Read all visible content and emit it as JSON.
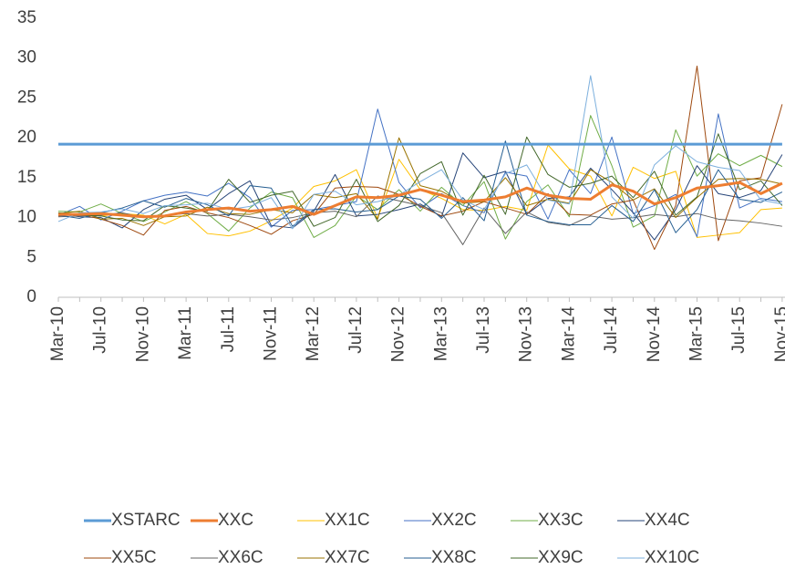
{
  "chart_data": {
    "type": "line",
    "categories": [
      "Mar-10",
      null,
      "Jul-10",
      null,
      "Nov-10",
      null,
      "Mar-11",
      null,
      "Jul-11",
      null,
      "Nov-11",
      null,
      "Mar-12",
      null,
      "Jul-12",
      null,
      "Nov-12",
      null,
      "Mar-13",
      null,
      "Jul-13",
      null,
      "Nov-13",
      null,
      "Mar-14",
      null,
      "Jul-14",
      null,
      "Nov-14",
      null,
      "Mar-15",
      null,
      "Jul-15",
      null,
      "Nov-15"
    ],
    "ylim": [
      0,
      35
    ],
    "yticks": [
      0,
      5,
      10,
      15,
      20,
      25,
      30,
      35
    ],
    "grid": false,
    "legend": "bottom",
    "series": [
      {
        "name": "XSTARC",
        "color": "#5b9bd5",
        "values": [
          19.2,
          19.2,
          19.2,
          19.2,
          19.2,
          19.2,
          19.2,
          19.2,
          19.2,
          19.2,
          19.2,
          19.2,
          19.2,
          19.2,
          19.2,
          19.2,
          19.2,
          19.2,
          19.2,
          19.2,
          19.2,
          19.2,
          19.2,
          19.2,
          19.2,
          19.2,
          19.2,
          19.2,
          19.2,
          19.2,
          19.2,
          19.2,
          19.2,
          19.2,
          19.2
        ]
      },
      {
        "name": "XXC",
        "color": "#ed7d31",
        "values": [
          10.4,
          10.4,
          10.5,
          10.3,
          10.1,
          10.2,
          10.7,
          11.0,
          11.2,
          10.8,
          11.0,
          11.4,
          10.4,
          11.5,
          12.6,
          12.5,
          12.8,
          13.5,
          12.8,
          12.0,
          12.2,
          12.6,
          13.7,
          12.8,
          12.4,
          12.3,
          14.1,
          13.3,
          11.7,
          12.5,
          13.7,
          14.0,
          14.4,
          13.0,
          14.3
        ]
      },
      {
        "name": "XX1C",
        "color": "#ffc000",
        "values": [
          10.6,
          10.4,
          10.2,
          10.5,
          10.3,
          9.2,
          10.4,
          8.0,
          7.7,
          8.3,
          9.6,
          11.2,
          13.9,
          14.6,
          16.0,
          9.9,
          17.3,
          13.5,
          12.4,
          11.0,
          10.9,
          11.4,
          10.9,
          19.1,
          16.1,
          15.2,
          10.2,
          16.3,
          14.9,
          15.8,
          7.5,
          7.8,
          8.1,
          11.0,
          11.2
        ]
      },
      {
        "name": "XX2C",
        "color": "#4472c4",
        "values": [
          10.3,
          11.4,
          9.7,
          10.8,
          12.1,
          12.8,
          13.2,
          12.7,
          14.3,
          12.5,
          8.8,
          10.9,
          11.0,
          11.5,
          12.0,
          23.6,
          14.4,
          11.2,
          13.0,
          11.5,
          10.6,
          15.7,
          15.2,
          9.8,
          16.0,
          13.0,
          20.1,
          10.5,
          11.5,
          12.9,
          7.6,
          23.0,
          11.2,
          12.4,
          12.0
        ]
      },
      {
        "name": "XX3C",
        "color": "#70ad47",
        "values": [
          10.8,
          10.7,
          11.7,
          10.5,
          9.5,
          10.7,
          12.0,
          10.5,
          8.3,
          11.2,
          13.2,
          12.5,
          7.5,
          9.0,
          12.7,
          11.0,
          13.5,
          10.8,
          13.8,
          11.5,
          14.5,
          7.3,
          12.0,
          14.1,
          10.1,
          22.8,
          16.5,
          8.8,
          10.2,
          21.0,
          15.2,
          18.0,
          16.5,
          17.8,
          16.4
        ]
      },
      {
        "name": "XX4C",
        "color": "#264478",
        "values": [
          10.5,
          10.1,
          10.0,
          8.7,
          11.0,
          12.3,
          12.8,
          11.0,
          13.0,
          14.6,
          9.0,
          8.7,
          10.8,
          15.4,
          10.2,
          10.4,
          11.0,
          11.7,
          10.1,
          18.1,
          15.0,
          15.8,
          10.4,
          12.4,
          12.6,
          16.2,
          13.5,
          10.6,
          7.2,
          11.0,
          16.5,
          13.0,
          12.5,
          13.4,
          17.9
        ]
      },
      {
        "name": "XX5C",
        "color": "#9e480e",
        "values": [
          10.2,
          10.4,
          9.8,
          9.0,
          7.8,
          10.9,
          11.4,
          10.6,
          10.0,
          9.0,
          7.9,
          9.6,
          10.4,
          13.7,
          13.9,
          13.8,
          12.9,
          11.4,
          10.2,
          10.8,
          12.0,
          11.2,
          10.4,
          13.0,
          10.4,
          10.3,
          11.7,
          12.2,
          6.0,
          11.5,
          29.0,
          7.1,
          14.6,
          15.0,
          24.2
        ]
      },
      {
        "name": "XX6C",
        "color": "#636363",
        "values": [
          10.1,
          10.2,
          10.3,
          10.6,
          10.0,
          10.3,
          10.5,
          10.2,
          10.4,
          10.1,
          9.7,
          10.0,
          10.6,
          10.8,
          10.1,
          12.7,
          12.1,
          11.5,
          10.6,
          6.6,
          11.2,
          8.0,
          10.7,
          9.4,
          9.0,
          10.2,
          9.8,
          10.0,
          10.4,
          10.1,
          10.5,
          9.8,
          9.6,
          9.3,
          8.9
        ]
      },
      {
        "name": "XX7C",
        "color": "#997300",
        "values": [
          10.5,
          10.8,
          9.8,
          9.9,
          9.0,
          10.1,
          10.2,
          11.3,
          10.5,
          10.4,
          11.0,
          10.6,
          12.9,
          12.5,
          13.0,
          9.8,
          20.0,
          14.0,
          13.3,
          11.8,
          12.0,
          15.0,
          11.5,
          12.3,
          11.8,
          16.0,
          14.4,
          12.2,
          13.6,
          10.0,
          12.5,
          14.8,
          14.9,
          14.8,
          14.2
        ]
      },
      {
        "name": "XX8C",
        "color": "#255e91",
        "values": [
          10.3,
          9.9,
          10.6,
          11.2,
          12.1,
          11.3,
          12.4,
          11.6,
          10.2,
          14.0,
          13.7,
          8.9,
          11.0,
          11.1,
          10.7,
          11.0,
          12.7,
          12.3,
          9.9,
          12.5,
          9.6,
          19.6,
          10.3,
          9.5,
          9.1,
          9.1,
          11.5,
          9.5,
          13.5,
          8.1,
          11.0,
          16.0,
          12.3,
          11.9,
          13.2
        ]
      },
      {
        "name": "XX9C",
        "color": "#43682b",
        "values": [
          10.6,
          10.3,
          10.2,
          9.7,
          9.6,
          11.5,
          11.2,
          10.8,
          14.8,
          11.9,
          12.8,
          13.3,
          8.9,
          10.0,
          14.8,
          9.5,
          11.5,
          15.5,
          17.0,
          10.3,
          15.3,
          10.4,
          20.1,
          15.4,
          13.8,
          14.3,
          15.2,
          12.5,
          15.8,
          10.3,
          12.6,
          20.5,
          13.5,
          14.6,
          11.5
        ]
      },
      {
        "name": "XX10C",
        "color": "#7cafdd",
        "values": [
          9.5,
          10.6,
          10.7,
          11.1,
          10.5,
          11.5,
          11.6,
          11.8,
          11.0,
          11.4,
          12.5,
          8.6,
          12.9,
          13.3,
          11.6,
          12.0,
          12.8,
          14.5,
          16.0,
          12.2,
          11.0,
          15.5,
          16.6,
          12.2,
          11.7,
          27.8,
          12.6,
          9.9,
          16.6,
          19.0,
          17.0,
          16.3,
          15.9,
          12.2,
          11.7
        ]
      }
    ]
  }
}
